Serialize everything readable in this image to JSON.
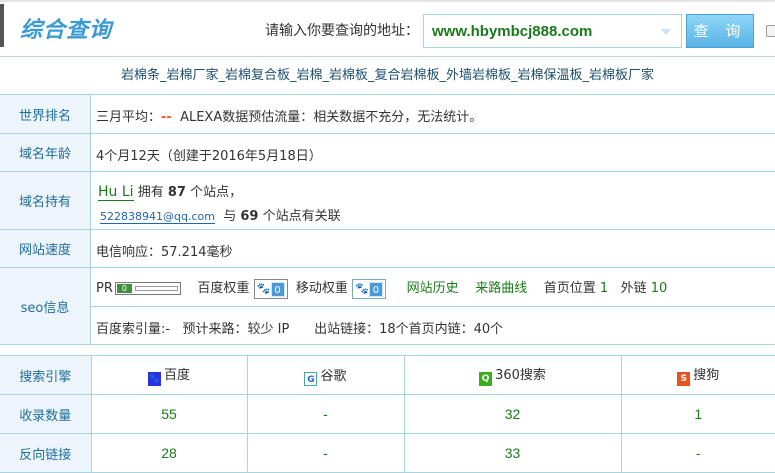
{
  "header": {
    "logo": "综合查询",
    "prompt": "请输入你要查询的地址：",
    "url_value": "www.hbymbcj888.com",
    "query_button": "查 询"
  },
  "keywords": "岩棉条_岩棉厂家_岩棉复合板_岩棉_岩棉板_复合岩棉板_外墙岩棉板_岩棉保温板_岩棉板厂家",
  "rank": {
    "label": "世界排名",
    "prefix": "三月平均：",
    "value": "--",
    "alexa": "ALEXA数据预估流量：相关数据不充分，无法统计。"
  },
  "age": {
    "label": "域名年龄",
    "value": "4个月12天（创建于2016年5月18日）"
  },
  "owner": {
    "label": "域名持有",
    "name": "Hu Li",
    "has": "拥有",
    "count": "87",
    "sites": "个站点，",
    "email": "522838941@qq.com",
    "with": "与",
    "related": "69",
    "related_text": "个站点有关联"
  },
  "speed": {
    "label": "网站速度",
    "value": "电信响应：57.214毫秒"
  },
  "seo": {
    "label": "seo信息",
    "pr_label": "PR",
    "pr_value": "0",
    "baidu_weight_label": "百度权重",
    "baidu_weight": "0",
    "mobile_weight_label": "移动权重",
    "mobile_weight": "0",
    "history": "网站历史",
    "traffic": "来路曲线",
    "home_pos_label": "首页位置",
    "home_pos": "1",
    "external_label": "外链",
    "external": "10",
    "index": "百度索引量:-",
    "estimated": "预计来路：较少 IP",
    "outlinks": "出站链接：18个首页内链：40个"
  },
  "engines": {
    "header": "搜索引擎",
    "names": [
      "百度",
      "谷歌",
      "360搜索",
      "搜狗"
    ],
    "rows": [
      {
        "label": "收录数量",
        "values": [
          "55",
          "-",
          "32",
          "1"
        ]
      },
      {
        "label": "反向链接",
        "values": [
          "28",
          "-",
          "33",
          "-"
        ]
      }
    ]
  },
  "colors": {
    "accent": "#3a9ad6",
    "green": "#1a7a1a",
    "border": "#a8d4e0"
  }
}
